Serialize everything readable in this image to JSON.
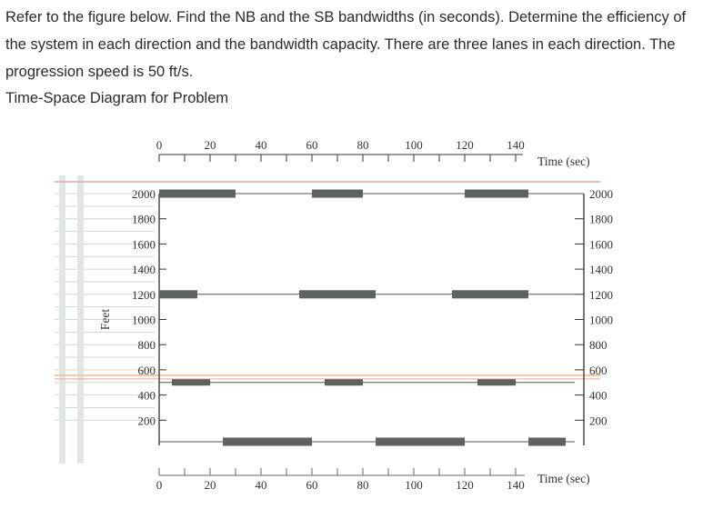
{
  "problem_text": "Refer to the figure below. Find the NB and the SB bandwidths (in seconds). Determine the efficiency of the system in each direction and the bandwidth capacity. There are three lanes in each direction. The progression speed is 50 ft/s.",
  "figure_title": "Time-Space Diagram for Problem",
  "chart_data": {
    "type": "time-space",
    "top_time_ticks": [
      "0",
      "20",
      "40",
      "60",
      "80",
      "100",
      "120",
      "140"
    ],
    "bottom_time_ticks": [
      "0",
      "20",
      "40",
      "60",
      "80",
      "100",
      "120",
      "140"
    ],
    "time_label_top": "Time (sec)",
    "time_label_bottom": "Time (sec)",
    "left_distance_ticks": [
      "2000",
      "1800",
      "1600",
      "1400",
      "1200",
      "1000",
      "800",
      "600",
      "400",
      "200"
    ],
    "right_distance_ticks": [
      "2000",
      "1800",
      "1600",
      "1400",
      "1200",
      "1000",
      "800",
      "600",
      "400",
      "200"
    ],
    "distance_label": "Feet",
    "time_range": [
      0,
      140
    ],
    "distance_range": [
      0,
      2000
    ],
    "signals": [
      {
        "distance": 2000,
        "red_intervals": [
          [
            0,
            30
          ],
          [
            60,
            80
          ],
          [
            120,
            145
          ]
        ]
      },
      {
        "distance": 1200,
        "red_intervals": [
          [
            0,
            15
          ],
          [
            55,
            85
          ],
          [
            115,
            145
          ]
        ]
      },
      {
        "distance": 500,
        "red_intervals": [
          [
            5,
            20
          ],
          [
            65,
            80
          ],
          [
            125,
            140
          ]
        ]
      },
      {
        "distance": 0,
        "red_intervals": [
          [
            25,
            60
          ],
          [
            85,
            120
          ],
          [
            145,
            165
          ]
        ]
      }
    ],
    "colors": {
      "bar": "#5d615f",
      "line": "#555555",
      "frame": "#333333",
      "pink": "#e9a3a8",
      "peach": "#f2c7a0"
    }
  }
}
